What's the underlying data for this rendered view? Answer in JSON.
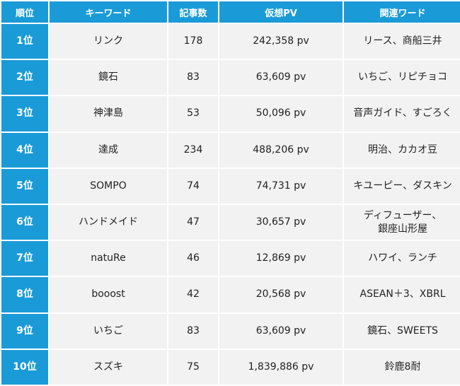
{
  "headers": [
    "順位",
    "キーワード",
    "記事数",
    "仮想PV",
    "関連ワード"
  ],
  "rows": [
    {
      "rank": "1位",
      "keyword": "リンク",
      "articles": "178",
      "pv": "242,358 pv",
      "related": "リース、商船三井"
    },
    {
      "rank": "2位",
      "keyword": "鏡石",
      "articles": "83",
      "pv": "63,609 pv",
      "related": "いちご、リピチョコ"
    },
    {
      "rank": "3位",
      "keyword": "神津島",
      "articles": "53",
      "pv": "50,096 pv",
      "related": "音声ガイド、すごろく"
    },
    {
      "rank": "4位",
      "keyword": "達成",
      "articles": "234",
      "pv": "488,206 pv",
      "related": "明治、カカオ豆"
    },
    {
      "rank": "5位",
      "keyword": "SOMPO",
      "articles": "74",
      "pv": "74,731 pv",
      "related": "キユーピー、ダスキン"
    },
    {
      "rank": "6位",
      "keyword": "ハンドメイド",
      "articles": "47",
      "pv": "30,657 pv",
      "related": "ディフューザー、\n銀座山形屋"
    },
    {
      "rank": "7位",
      "keyword": "natuRe",
      "articles": "46",
      "pv": "12,869 pv",
      "related": "ハワイ、ランチ"
    },
    {
      "rank": "8位",
      "keyword": "booost",
      "articles": "42",
      "pv": "20,568 pv",
      "related": "ASEAN＋3、XBRL"
    },
    {
      "rank": "9位",
      "keyword": "いちご",
      "articles": "83",
      "pv": "63,609 pv",
      "related": "鏡石、SWEETS"
    },
    {
      "rank": "10位",
      "keyword": "スズキ",
      "articles": "75",
      "pv": "1,839,886 pv",
      "related": "鈴鹿8耐"
    }
  ]
}
